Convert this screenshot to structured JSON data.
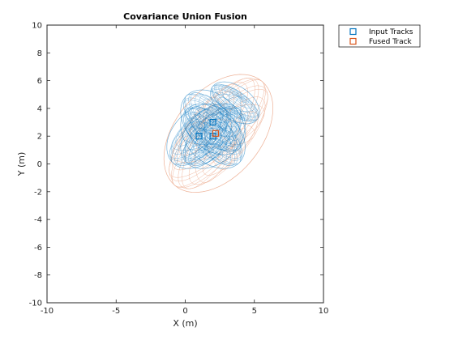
{
  "chart_data": {
    "type": "scatter",
    "title": "Covariance Union Fusion",
    "xlabel": "X (m)",
    "ylabel": "Y (m)",
    "xlim": [
      -10,
      10
    ],
    "ylim": [
      -10,
      10
    ],
    "xticks": [
      -10,
      -5,
      0,
      5,
      10
    ],
    "yticks": [
      -10,
      -8,
      -6,
      -4,
      -2,
      0,
      2,
      4,
      6,
      8,
      10
    ],
    "grid": false,
    "legend_position": "outside-top-right",
    "series": [
      {
        "name": "Input Tracks",
        "color": "#0072BD",
        "marker": "square",
        "points": [
          [
            1,
            2
          ],
          [
            2,
            3
          ],
          [
            2,
            2
          ]
        ],
        "ellipsoids": [
          {
            "center": [
              1,
              2
            ],
            "rx": 1.9,
            "ry": 2.7,
            "angle_deg": -45
          },
          {
            "center": [
              2,
              3
            ],
            "rx": 1.9,
            "ry": 2.7,
            "angle_deg": 45
          },
          {
            "center": [
              2,
              2
            ],
            "rx": 1.9,
            "ry": 2.7,
            "angle_deg": 45
          },
          {
            "center": [
              2,
              2
            ],
            "rx": 1.9,
            "ry": 2.7,
            "angle_deg": -45
          },
          {
            "center": [
              3.6,
              4.4
            ],
            "rx": 1.2,
            "ry": 2.0,
            "angle_deg": 55
          }
        ]
      },
      {
        "name": "Fused Track",
        "color": "#D95319",
        "marker": "square",
        "points": [
          [
            2.2,
            2.2
          ]
        ],
        "ellipsoids": [
          {
            "center": [
              2.4,
              2.2
            ],
            "rx": 3.1,
            "ry": 4.9,
            "angle_deg": -40
          }
        ]
      }
    ]
  }
}
